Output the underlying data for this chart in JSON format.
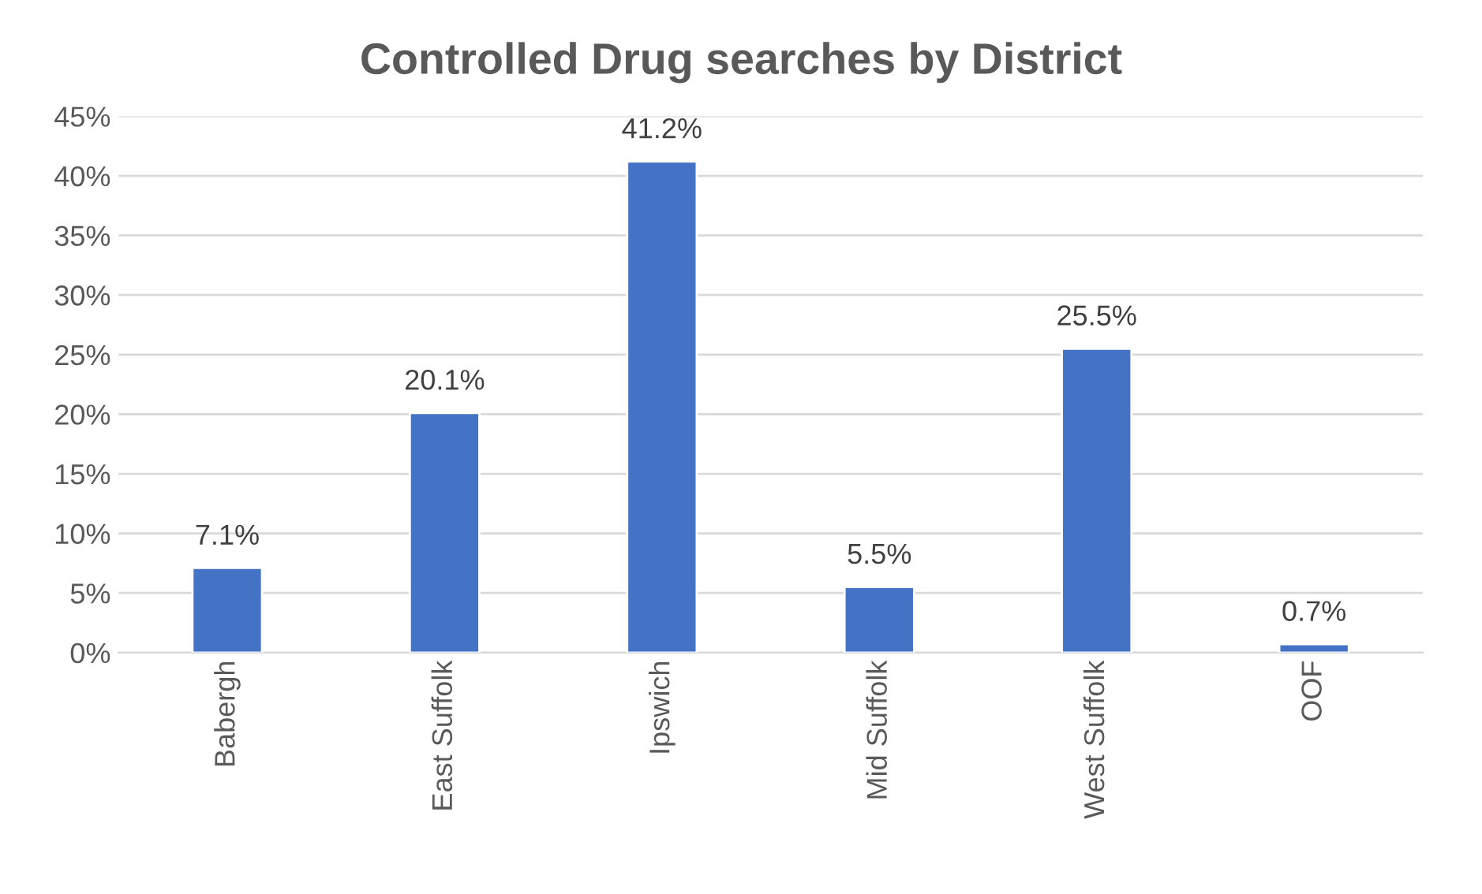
{
  "chart_data": {
    "type": "bar",
    "title": "Controlled Drug searches by District",
    "categories": [
      "Babergh",
      "East Suffolk",
      "Ipswich",
      "Mid Suffolk",
      "West Suffolk",
      "OOF"
    ],
    "values": [
      7.1,
      20.1,
      41.2,
      5.5,
      25.5,
      0.7
    ],
    "value_labels": [
      "7.1%",
      "20.1%",
      "41.2%",
      "5.5%",
      "25.5%",
      "0.7%"
    ],
    "color": "#4472c4",
    "ylim": [
      0,
      45
    ],
    "yticks": [
      {
        "value": 0,
        "label": "0%"
      },
      {
        "value": 5,
        "label": "5%"
      },
      {
        "value": 10,
        "label": "10%"
      },
      {
        "value": 15,
        "label": "15%"
      },
      {
        "value": 20,
        "label": "20%"
      },
      {
        "value": 25,
        "label": "25%"
      },
      {
        "value": 30,
        "label": "30%"
      },
      {
        "value": 35,
        "label": "35%"
      },
      {
        "value": 40,
        "label": "40%"
      },
      {
        "value": 45,
        "label": "45%"
      }
    ],
    "grid": "y",
    "legend": false
  }
}
